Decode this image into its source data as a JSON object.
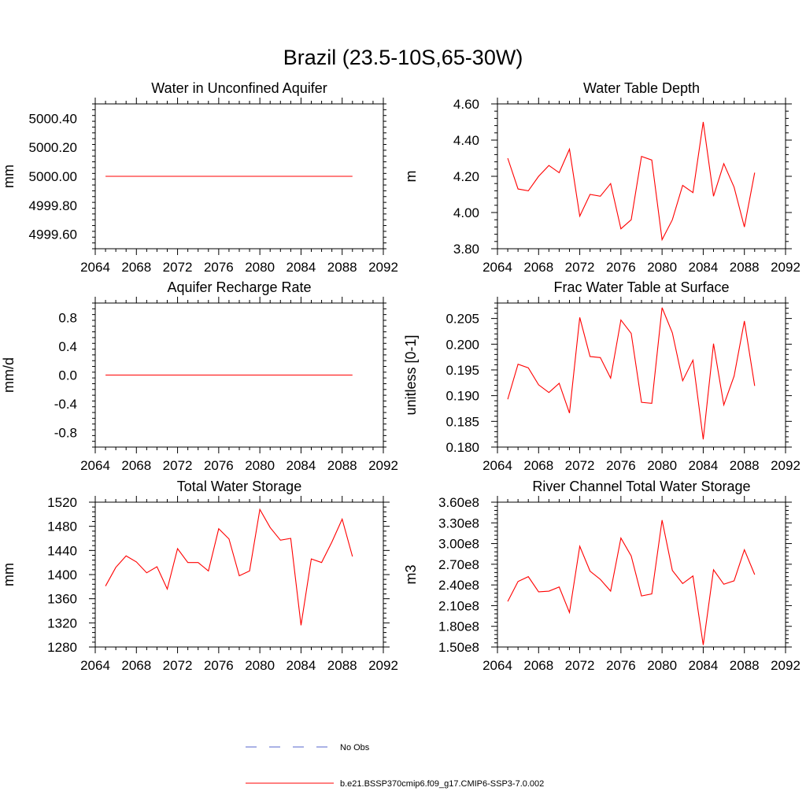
{
  "title": "Brazil (23.5-10S,65-30W)",
  "x_ticks": [
    "2064",
    "2068",
    "2072",
    "2076",
    "2080",
    "2084",
    "2088",
    "2092"
  ],
  "line_color": "#ff0000",
  "obs_color": "#5566cc",
  "legend": {
    "obs_label": "No Obs",
    "model_label": "b.e21.BSSP370cmip6.f09_g17.CMIP6-SSP3-7.0.002"
  },
  "chart_data": [
    {
      "type": "line",
      "title": "Water in Unconfined Aquifer",
      "ylabel": "mm",
      "xlim": [
        2064,
        2092
      ],
      "ylim": [
        4999.5,
        5000.5
      ],
      "y_ticks": [
        4999.6,
        4999.8,
        5000.0,
        5000.2,
        5000.4
      ],
      "y_tick_labels": [
        "4999.60",
        "4999.80",
        "5000.00",
        "5000.20",
        "5000.40"
      ],
      "x": [
        2065,
        2066,
        2067,
        2068,
        2069,
        2070,
        2071,
        2072,
        2073,
        2074,
        2075,
        2076,
        2077,
        2078,
        2079,
        2080,
        2081,
        2082,
        2083,
        2084,
        2085,
        2086,
        2087,
        2088,
        2089
      ],
      "values": [
        5000,
        5000,
        5000,
        5000,
        5000,
        5000,
        5000,
        5000,
        5000,
        5000,
        5000,
        5000,
        5000,
        5000,
        5000,
        5000,
        5000,
        5000,
        5000,
        5000,
        5000,
        5000,
        5000,
        5000,
        5000
      ]
    },
    {
      "type": "line",
      "title": "Water Table Depth",
      "ylabel": "m",
      "xlim": [
        2064,
        2092
      ],
      "ylim": [
        3.8,
        4.6
      ],
      "y_ticks": [
        3.8,
        4.0,
        4.2,
        4.4,
        4.6
      ],
      "y_tick_labels": [
        "3.80",
        "4.00",
        "4.20",
        "4.40",
        "4.60"
      ],
      "x": [
        2065,
        2066,
        2067,
        2068,
        2069,
        2070,
        2071,
        2072,
        2073,
        2074,
        2075,
        2076,
        2077,
        2078,
        2079,
        2080,
        2081,
        2082,
        2083,
        2084,
        2085,
        2086,
        2087,
        2088,
        2089
      ],
      "values": [
        4.3,
        4.13,
        4.12,
        4.2,
        4.26,
        4.22,
        4.35,
        3.98,
        4.1,
        4.09,
        4.16,
        3.91,
        3.96,
        4.31,
        4.29,
        3.85,
        3.96,
        4.15,
        4.11,
        4.5,
        4.09,
        4.27,
        4.14,
        3.92,
        4.22
      ]
    },
    {
      "type": "line",
      "title": "Aquifer Recharge Rate",
      "ylabel": "mm/d",
      "xlim": [
        2064,
        2092
      ],
      "ylim": [
        -1.0,
        1.0
      ],
      "y_ticks": [
        -0.8,
        -0.4,
        0.0,
        0.4,
        0.8
      ],
      "y_tick_labels": [
        "-0.8",
        "-0.4",
        "0.0",
        "0.4",
        "0.8"
      ],
      "x": [
        2065,
        2066,
        2067,
        2068,
        2069,
        2070,
        2071,
        2072,
        2073,
        2074,
        2075,
        2076,
        2077,
        2078,
        2079,
        2080,
        2081,
        2082,
        2083,
        2084,
        2085,
        2086,
        2087,
        2088,
        2089
      ],
      "values": [
        0,
        0,
        0,
        0,
        0,
        0,
        0,
        0,
        0,
        0,
        0,
        0,
        0,
        0,
        0,
        0,
        0,
        0,
        0,
        0,
        0,
        0,
        0,
        0,
        0
      ]
    },
    {
      "type": "line",
      "title": "Frac Water Table at Surface",
      "ylabel": "unitless [0-1]",
      "xlim": [
        2064,
        2092
      ],
      "ylim": [
        0.18,
        0.208
      ],
      "y_ticks": [
        0.18,
        0.185,
        0.19,
        0.195,
        0.2,
        0.205
      ],
      "y_tick_labels": [
        "0.180",
        "0.185",
        "0.190",
        "0.195",
        "0.200",
        "0.205"
      ],
      "x": [
        2065,
        2066,
        2067,
        2068,
        2069,
        2070,
        2071,
        2072,
        2073,
        2074,
        2075,
        2076,
        2077,
        2078,
        2079,
        2080,
        2081,
        2082,
        2083,
        2084,
        2085,
        2086,
        2087,
        2088,
        2089
      ],
      "values": [
        0.1893,
        0.1961,
        0.1954,
        0.1921,
        0.1906,
        0.1924,
        0.1866,
        0.2052,
        0.1976,
        0.1974,
        0.1934,
        0.2047,
        0.2021,
        0.1887,
        0.1885,
        0.2071,
        0.2022,
        0.1929,
        0.1969,
        0.1815,
        0.2001,
        0.1882,
        0.1938,
        0.2045,
        0.1919
      ]
    },
    {
      "type": "line",
      "title": "Total Water Storage",
      "ylabel": "mm",
      "xlim": [
        2064,
        2092
      ],
      "ylim": [
        1280,
        1520
      ],
      "y_ticks": [
        1280,
        1320,
        1360,
        1400,
        1440,
        1480,
        1520
      ],
      "y_tick_labels": [
        "1280",
        "1320",
        "1360",
        "1400",
        "1440",
        "1480",
        "1520"
      ],
      "x": [
        2065,
        2066,
        2067,
        2068,
        2069,
        2070,
        2071,
        2072,
        2073,
        2074,
        2075,
        2076,
        2077,
        2078,
        2079,
        2080,
        2081,
        2082,
        2083,
        2084,
        2085,
        2086,
        2087,
        2088,
        2089
      ],
      "values": [
        1381,
        1412,
        1431,
        1421,
        1403,
        1413,
        1376,
        1443,
        1420,
        1420,
        1406,
        1476,
        1459,
        1398,
        1406,
        1508,
        1478,
        1457,
        1460,
        1316,
        1426,
        1420,
        1454,
        1492,
        1430
      ]
    },
    {
      "type": "line",
      "title": "River Channel Total Water Storage",
      "ylabel": "m3",
      "xlim": [
        2064,
        2092
      ],
      "ylim": [
        150000000,
        360000000
      ],
      "y_ticks": [
        150000000,
        180000000,
        210000000,
        240000000,
        270000000,
        300000000,
        330000000,
        360000000
      ],
      "y_tick_labels": [
        "1.50e8",
        "1.80e8",
        "2.10e8",
        "2.40e8",
        "2.70e8",
        "3.00e8",
        "3.30e8",
        "3.60e8"
      ],
      "x": [
        2065,
        2066,
        2067,
        2068,
        2069,
        2070,
        2071,
        2072,
        2073,
        2074,
        2075,
        2076,
        2077,
        2078,
        2079,
        2080,
        2081,
        2082,
        2083,
        2084,
        2085,
        2086,
        2087,
        2088,
        2089
      ],
      "values": [
        216000000,
        245000000,
        252000000,
        230000000,
        231000000,
        237000000,
        200000000,
        296000000,
        260000000,
        248000000,
        231000000,
        308000000,
        282000000,
        224000000,
        227000000,
        334000000,
        261000000,
        242000000,
        253000000,
        153000000,
        262000000,
        241000000,
        246000000,
        291000000,
        255000000
      ]
    }
  ]
}
